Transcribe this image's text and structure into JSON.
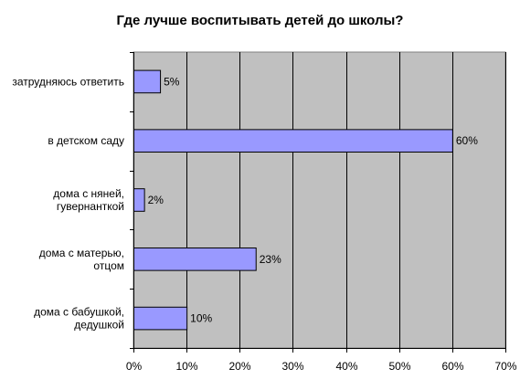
{
  "chart_data": {
    "type": "bar",
    "orientation": "horizontal",
    "title": "Где лучше воспитывать детей до школы?",
    "categories": [
      [
        "затрудняюсь ответить"
      ],
      [
        "в детском саду"
      ],
      [
        "дома с няней,",
        "гувернанткой"
      ],
      [
        "дома с матерью,",
        "отцом"
      ],
      [
        "дома с бабушкой,",
        "дедушкой"
      ]
    ],
    "values": [
      5,
      60,
      2,
      23,
      10
    ],
    "value_labels": [
      "5%",
      "60%",
      "2%",
      "23%",
      "10%"
    ],
    "xlim": [
      0,
      70
    ],
    "x_ticks": [
      "0%",
      "10%",
      "20%",
      "30%",
      "40%",
      "50%",
      "60%",
      "70%"
    ],
    "grid": true,
    "legend": "none",
    "colors": {
      "plot_background": "#c0c0c0",
      "bar_fill": "#9999ff",
      "bar_stroke": "#000000",
      "gridline": "#000000"
    }
  }
}
